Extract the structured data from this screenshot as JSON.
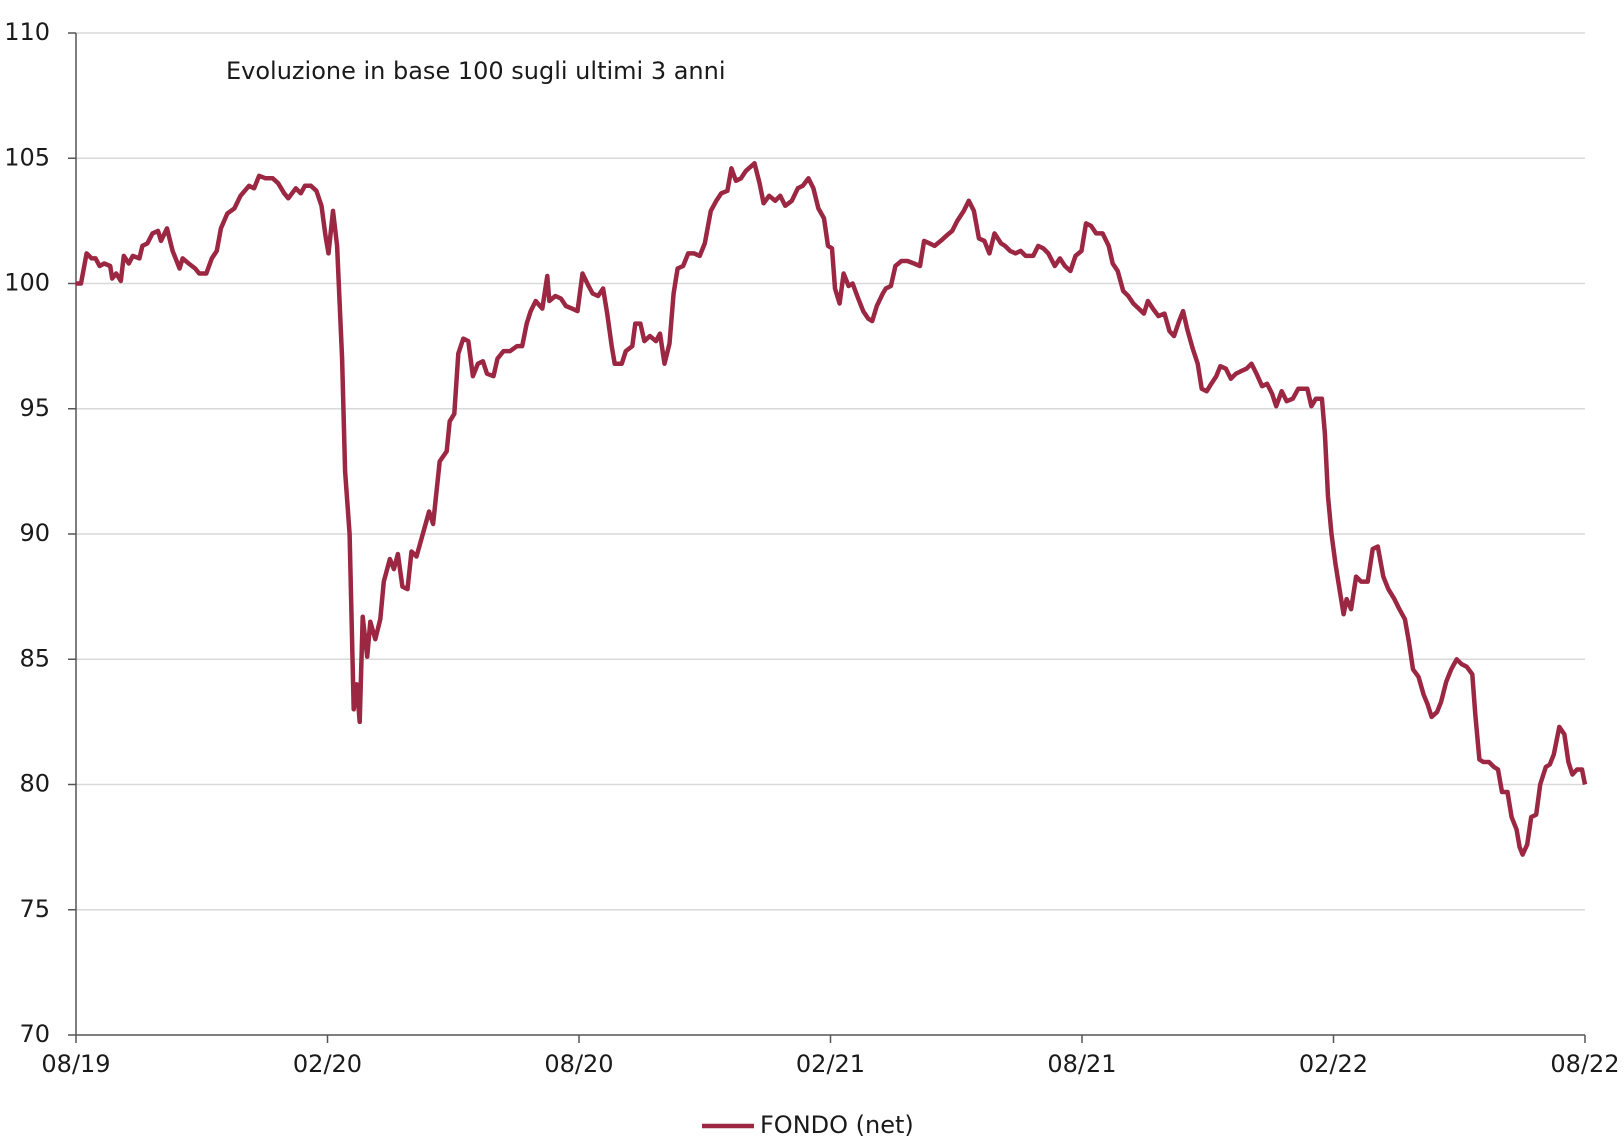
{
  "chart_data": {
    "type": "line",
    "title": "Evoluzione in base 100 sugli ultimi 3 anni",
    "x": [
      2019.583,
      2019.593,
      2019.604,
      2019.614,
      2019.622,
      2019.63,
      2019.639,
      2019.651,
      2019.655,
      2019.663,
      2019.672,
      2019.678,
      2019.688,
      2019.696,
      2019.709,
      2019.715,
      2019.725,
      2019.735,
      2019.746,
      2019.752,
      2019.764,
      2019.775,
      2019.781,
      2019.789,
      2019.795,
      2019.807,
      2019.82,
      2019.828,
      2019.842,
      2019.853,
      2019.863,
      2019.871,
      2019.884,
      2019.898,
      2019.91,
      2019.927,
      2019.937,
      2019.947,
      2019.96,
      2019.974,
      2019.985,
      2019.997,
      2020.005,
      2020.02,
      2020.03,
      2020.038,
      2020.05,
      2020.061,
      2020.071,
      2020.079,
      2020.085,
      2020.094,
      2020.102,
      2020.112,
      2020.118,
      2020.127,
      2020.135,
      2020.141,
      2020.147,
      2020.153,
      2020.162,
      2020.168,
      2020.178,
      2020.188,
      2020.195,
      2020.207,
      2020.215,
      2020.223,
      2020.232,
      2020.242,
      2020.25,
      2020.26,
      2020.271,
      2020.285,
      2020.293,
      2020.306,
      2020.32,
      2020.326,
      2020.335,
      2020.343,
      2020.353,
      2020.363,
      2020.372,
      2020.382,
      2020.392,
      2020.4,
      2020.413,
      2020.421,
      2020.433,
      2020.446,
      2020.46,
      2020.47,
      2020.479,
      2020.487,
      2020.497,
      2020.51,
      2020.52,
      2020.524,
      2020.536,
      2020.547,
      2020.557,
      2020.569,
      2020.58,
      2020.59,
      2020.602,
      2020.61,
      2020.621,
      2020.631,
      2020.639,
      2020.648,
      2020.654,
      2020.668,
      2020.676,
      2020.689,
      2020.695,
      2020.705,
      2020.713,
      2020.724,
      2020.736,
      2020.744,
      2020.753,
      2020.763,
      2020.771,
      2020.779,
      2020.79,
      2020.8,
      2020.812,
      2020.823,
      2020.833,
      2020.845,
      2020.856,
      2020.866,
      2020.878,
      2020.886,
      2020.895,
      2020.905,
      2020.915,
      2020.932,
      2020.942,
      2020.95,
      2020.961,
      2020.973,
      2020.983,
      2020.993,
      2021.006,
      2021.018,
      2021.028,
      2021.039,
      2021.049,
      2021.059,
      2021.07,
      2021.078,
      2021.086,
      2021.092,
      2021.101,
      2021.109,
      2021.119,
      2021.127,
      2021.138,
      2021.148,
      2021.158,
      2021.166,
      2021.175,
      2021.187,
      2021.193,
      2021.203,
      2021.212,
      2021.224,
      2021.236,
      2021.249,
      2021.261,
      2021.269,
      2021.28,
      2021.29,
      2021.302,
      2021.313,
      2021.325,
      2021.335,
      2021.348,
      2021.358,
      2021.368,
      2021.378,
      2021.389,
      2021.399,
      2021.409,
      2021.422,
      2021.43,
      2021.44,
      2021.451,
      2021.461,
      2021.471,
      2021.486,
      2021.496,
      2021.506,
      2021.516,
      2021.529,
      2021.539,
      2021.549,
      2021.56,
      2021.57,
      2021.582,
      2021.591,
      2021.601,
      2021.611,
      2021.624,
      2021.636,
      2021.644,
      2021.654,
      2021.665,
      2021.675,
      2021.685,
      2021.696,
      2021.706,
      2021.714,
      2021.724,
      2021.735,
      2021.747,
      2021.757,
      2021.766,
      2021.776,
      2021.784,
      2021.792,
      2021.803,
      2021.813,
      2021.821,
      2021.831,
      2021.84,
      2021.85,
      2021.858,
      2021.869,
      2021.879,
      2021.889,
      2021.899,
      2021.91,
      2021.92,
      2021.93,
      2021.941,
      2021.951,
      2021.961,
      2021.969,
      2021.98,
      2021.99,
      2022.002,
      2022.013,
      2022.023,
      2022.031,
      2022.039,
      2022.048,
      2022.06,
      2022.066,
      2022.072,
      2022.079,
      2022.087,
      2022.095,
      2022.103,
      2022.109,
      2022.118,
      2022.128,
      2022.138,
      2022.151,
      2022.161,
      2022.171,
      2022.182,
      2022.192,
      2022.204,
      2022.214,
      2022.225,
      2022.233,
      2022.241,
      2022.252,
      2022.262,
      2022.27,
      2022.278,
      2022.289,
      2022.297,
      2022.307,
      2022.317,
      2022.328,
      2022.338,
      2022.348,
      2022.359,
      2022.365,
      2022.373,
      2022.381,
      2022.392,
      2022.402,
      2022.41,
      2022.418,
      2022.429,
      2022.437,
      2022.447,
      2022.453,
      2022.459,
      2022.468,
      2022.476,
      2022.486,
      2022.494,
      2022.505,
      2022.513,
      2022.521,
      2022.532,
      2022.542,
      2022.55,
      2022.558,
      2022.567,
      2022.577,
      2022.583
    ],
    "series": [
      {
        "name": "FONDO (net)",
        "color": "#9b2743",
        "values": [
          100,
          100,
          101.2,
          101,
          101,
          100.7,
          100.8,
          100.7,
          100.2,
          100.4,
          100.1,
          101.1,
          100.8,
          101.1,
          101,
          101.5,
          101.6,
          102,
          102.1,
          101.7,
          102.2,
          101.3,
          101,
          100.6,
          101,
          100.8,
          100.6,
          100.4,
          100.4,
          101,
          101.3,
          102.2,
          102.8,
          103,
          103.5,
          103.9,
          103.8,
          104.3,
          104.2,
          104.2,
          104,
          103.6,
          103.4,
          103.8,
          103.6,
          103.9,
          103.9,
          103.7,
          103.1,
          101.9,
          101.2,
          102.9,
          101.5,
          97,
          92.5,
          90,
          83,
          84,
          82.5,
          86.7,
          85.1,
          86.5,
          85.8,
          86.6,
          88.1,
          89,
          88.6,
          89.2,
          87.9,
          87.8,
          89.3,
          89.1,
          89.9,
          90.9,
          90.4,
          92.9,
          93.3,
          94.5,
          94.8,
          97.2,
          97.8,
          97.7,
          96.3,
          96.8,
          96.9,
          96.4,
          96.3,
          97,
          97.3,
          97.3,
          97.5,
          97.5,
          98.4,
          98.9,
          99.3,
          99,
          100.3,
          99.3,
          99.5,
          99.4,
          99.1,
          99,
          98.9,
          100.4,
          99.9,
          99.6,
          99.5,
          99.8,
          98.8,
          97.5,
          96.8,
          96.8,
          97.3,
          97.5,
          98.4,
          98.4,
          97.7,
          97.9,
          97.7,
          98,
          96.8,
          97.6,
          99.6,
          100.6,
          100.7,
          101.2,
          101.2,
          101.1,
          101.6,
          102.9,
          103.3,
          103.6,
          103.7,
          104.6,
          104.1,
          104.2,
          104.5,
          104.8,
          104,
          103.2,
          103.5,
          103.3,
          103.5,
          103.1,
          103.3,
          103.8,
          103.9,
          104.2,
          103.8,
          103,
          102.6,
          101.5,
          101.4,
          99.8,
          99.2,
          100.4,
          99.9,
          100,
          99.4,
          98.9,
          98.6,
          98.5,
          99.1,
          99.6,
          99.8,
          99.9,
          100.7,
          100.9,
          100.9,
          100.8,
          100.7,
          101.7,
          101.6,
          101.5,
          101.7,
          101.9,
          102.1,
          102.5,
          102.9,
          103.3,
          102.9,
          101.8,
          101.7,
          101.2,
          102,
          101.6,
          101.5,
          101.3,
          101.2,
          101.3,
          101.1,
          101.1,
          101.5,
          101.4,
          101.2,
          100.7,
          101,
          100.7,
          100.5,
          101.1,
          101.3,
          102.4,
          102.3,
          102,
          102,
          101.5,
          100.8,
          100.5,
          99.7,
          99.5,
          99.2,
          99,
          98.8,
          99.3,
          99,
          98.7,
          98.8,
          98.1,
          97.9,
          98.5,
          98.9,
          98.2,
          97.4,
          96.8,
          95.8,
          95.7,
          96,
          96.3,
          96.7,
          96.6,
          96.2,
          96.4,
          96.5,
          96.6,
          96.8,
          96.4,
          95.9,
          96,
          95.6,
          95.1,
          95.7,
          95.3,
          95.4,
          95.8,
          95.8,
          95.8,
          95.1,
          95.4,
          95.4,
          94,
          91.5,
          90,
          88.8,
          87.8,
          86.8,
          87.4,
          87,
          88.3,
          88.1,
          88.1,
          89.4,
          89.5,
          88.3,
          87.8,
          87.4,
          87,
          86.6,
          85.7,
          84.6,
          84.3,
          83.6,
          83.2,
          82.7,
          82.9,
          83.3,
          84.1,
          84.6,
          85,
          84.8,
          84.7,
          84.4,
          82.8,
          81,
          80.9,
          80.9,
          80.7,
          80.6,
          79.7,
          79.7,
          78.7,
          78.2,
          77.5,
          77.2,
          77.6,
          78.7,
          78.8,
          80,
          80.7,
          80.8,
          81.2,
          82.3,
          82,
          80.9,
          80.4,
          80.6,
          80.6,
          80
        ]
      }
    ],
    "xlim": [
      2019.583,
      2022.583
    ],
    "xticks": [
      {
        "value": 2019.583,
        "label": "08/19"
      },
      {
        "value": 2020.083,
        "label": "02/20"
      },
      {
        "value": 2020.583,
        "label": "08/20"
      },
      {
        "value": 2021.083,
        "label": "02/21"
      },
      {
        "value": 2021.583,
        "label": "08/21"
      },
      {
        "value": 2022.083,
        "label": "02/22"
      },
      {
        "value": 2022.583,
        "label": "08/22"
      }
    ],
    "ylim": [
      70,
      110
    ],
    "yticks": [
      70,
      75,
      80,
      85,
      90,
      95,
      100,
      105,
      110
    ],
    "grid": true,
    "legend": "bottom"
  }
}
